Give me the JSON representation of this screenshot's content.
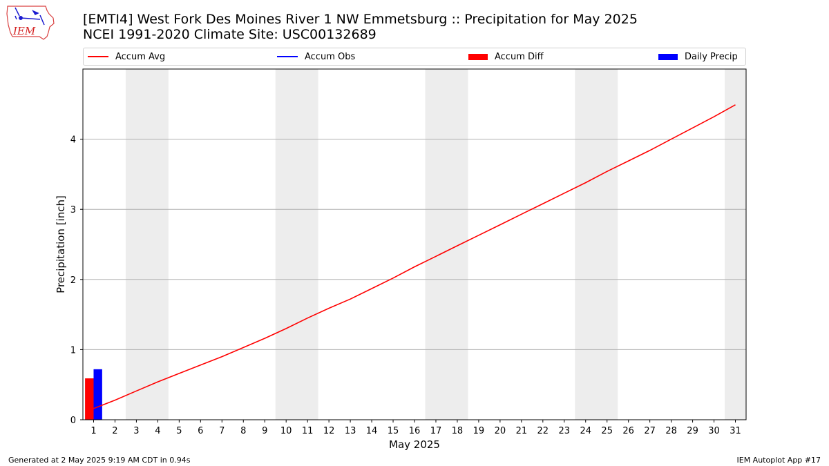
{
  "header": {
    "title_line1": "[EMTI4] West Fork Des Moines River 1 NW Emmetsburg :: Precipitation for May 2025",
    "title_line2": "NCEI 1991-2020 Climate Site: USC00132689",
    "logo_text": "IEM"
  },
  "legend": {
    "items": [
      {
        "label": "Accum Avg",
        "kind": "line",
        "color": "#ff0000"
      },
      {
        "label": "Accum Obs",
        "kind": "line",
        "color": "#0000ff"
      },
      {
        "label": "Accum Diff",
        "kind": "box",
        "color": "#ff0000"
      },
      {
        "label": "Daily Precip",
        "kind": "box",
        "color": "#0000ff"
      }
    ]
  },
  "chart_data": {
    "type": "line",
    "xlabel": "May 2025",
    "ylabel": "Precipitation [inch]",
    "xlim": [
      0.5,
      31.5
    ],
    "ylim": [
      0,
      5
    ],
    "x_ticks": [
      1,
      2,
      3,
      4,
      5,
      6,
      7,
      8,
      9,
      10,
      11,
      12,
      13,
      14,
      15,
      16,
      17,
      18,
      19,
      20,
      21,
      22,
      23,
      24,
      25,
      26,
      27,
      28,
      29,
      30,
      31
    ],
    "y_ticks": [
      0,
      1,
      2,
      3,
      4
    ],
    "grid": "horizontal",
    "weekend_bands": [
      [
        2.5,
        4.5
      ],
      [
        9.5,
        11.5
      ],
      [
        16.5,
        18.5
      ],
      [
        23.5,
        25.5
      ],
      [
        30.5,
        31.5
      ]
    ],
    "band_color": "#ededed",
    "series": [
      {
        "name": "Accum Avg",
        "kind": "line",
        "color": "#ff0000",
        "x": [
          1,
          2,
          3,
          4,
          5,
          6,
          7,
          8,
          9,
          10,
          11,
          12,
          13,
          14,
          15,
          16,
          17,
          18,
          19,
          20,
          21,
          22,
          23,
          24,
          25,
          26,
          27,
          28,
          29,
          30,
          31
        ],
        "values": [
          0.16,
          0.28,
          0.41,
          0.54,
          0.66,
          0.78,
          0.9,
          1.03,
          1.16,
          1.3,
          1.45,
          1.59,
          1.72,
          1.87,
          2.02,
          2.18,
          2.33,
          2.48,
          2.63,
          2.78,
          2.93,
          3.08,
          3.23,
          3.38,
          3.54,
          3.69,
          3.84,
          4.0,
          4.16,
          4.32,
          4.49
        ]
      },
      {
        "name": "Accum Diff",
        "kind": "bar",
        "color": "#ff0000",
        "x": [
          1
        ],
        "values": [
          0.59
        ]
      },
      {
        "name": "Daily Precip",
        "kind": "bar",
        "color": "#0000ff",
        "x": [
          1
        ],
        "values": [
          0.72
        ]
      }
    ]
  },
  "footer": {
    "left": "Generated at 2 May 2025 9:19 AM CDT in 0.94s",
    "right": "IEM Autoplot App #17"
  }
}
